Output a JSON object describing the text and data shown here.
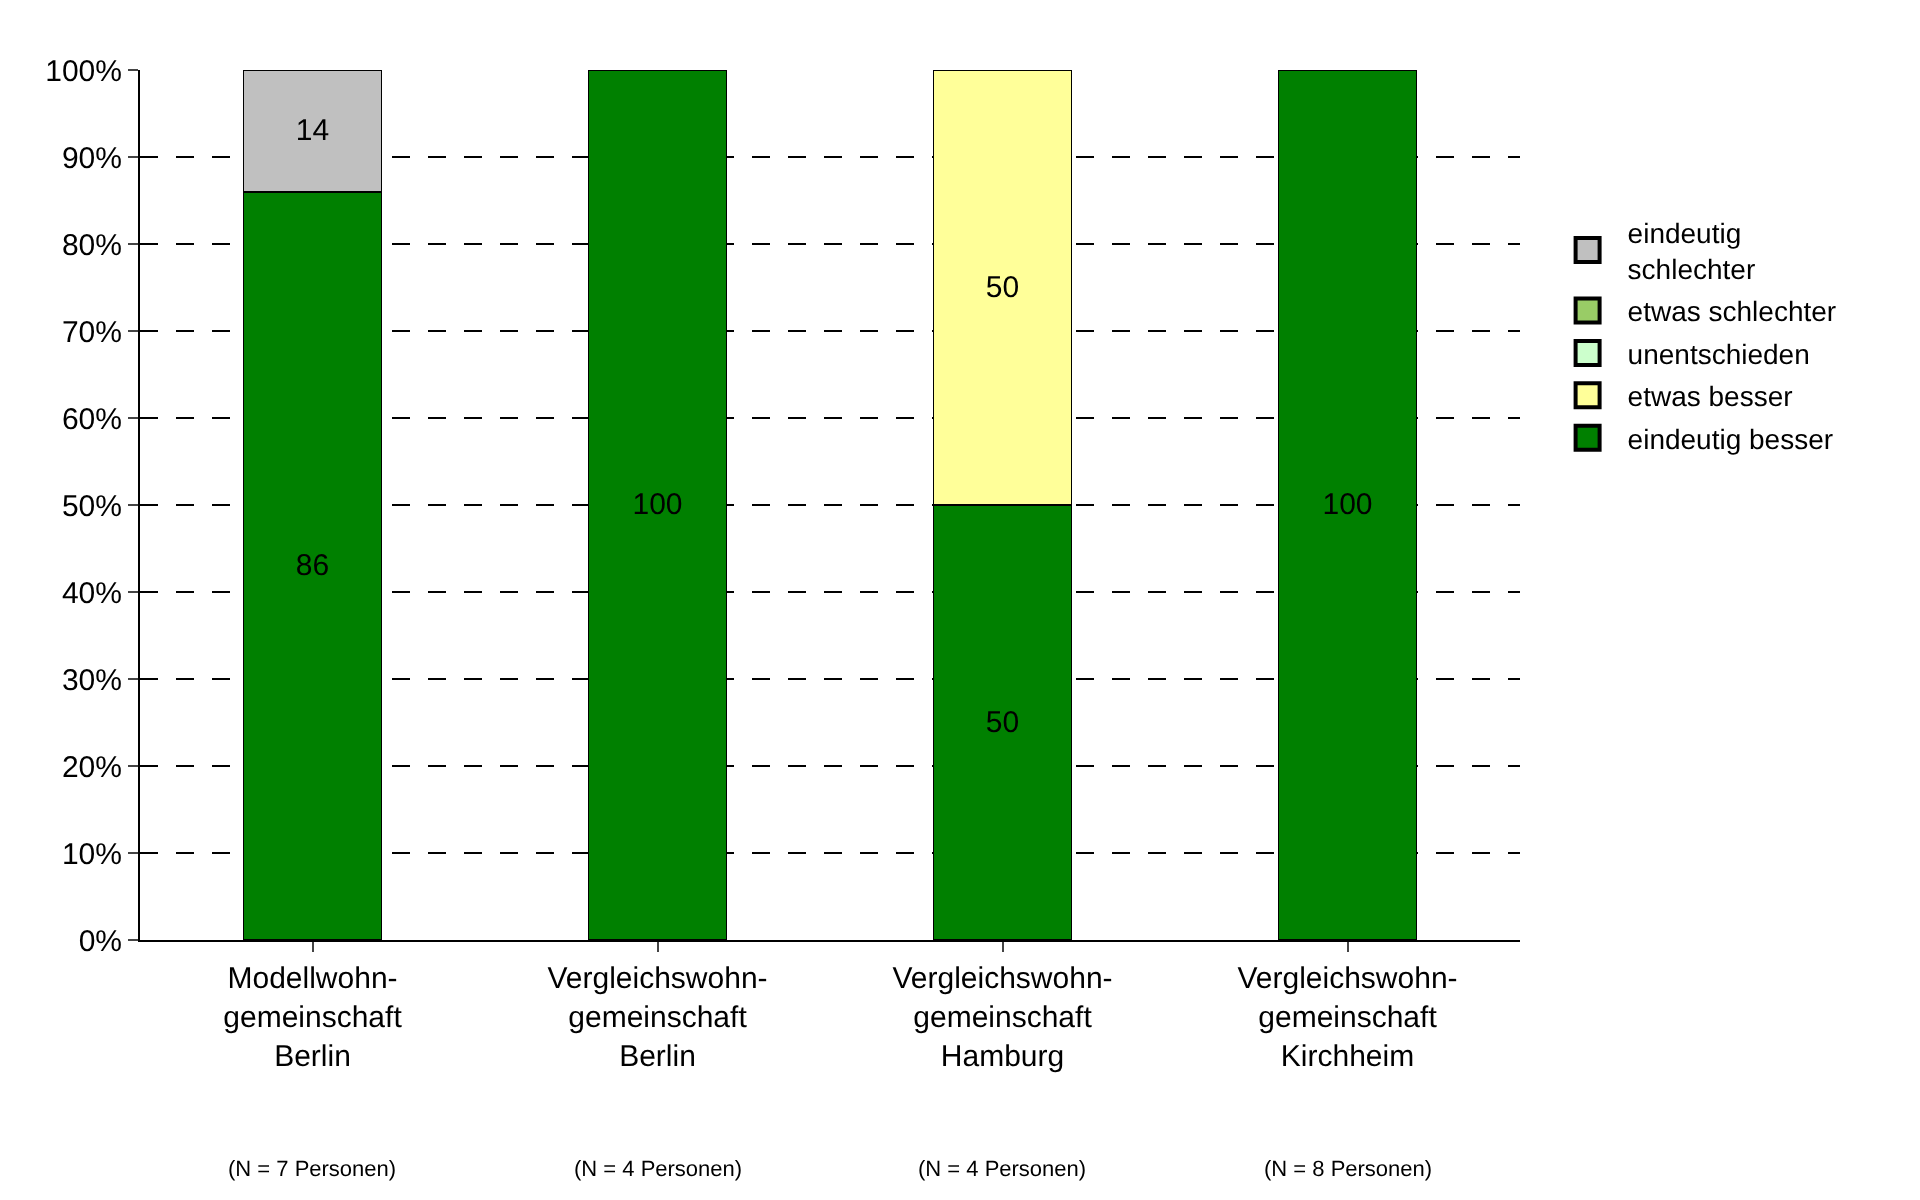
{
  "chart_data": {
    "type": "bar",
    "stacked": true,
    "categories": [
      "Modellwohn-\ngemeinschaft\nBerlin",
      "Vergleichswohn-\ngemeinschaft\nBerlin",
      "Vergleichswohn-\ngemeinschaft\nHamburg",
      "Vergleichswohn-\ngemeinschaft\nKirchheim"
    ],
    "series": [
      {
        "name": "eindeutig besser",
        "color": "#008000",
        "values": [
          86,
          100,
          50,
          100
        ],
        "value_labels": [
          "86",
          "100",
          "50",
          "100"
        ]
      },
      {
        "name": "etwas besser",
        "color": "#ffff99",
        "values": [
          0,
          0,
          50,
          0
        ],
        "value_labels": [
          null,
          null,
          "50",
          null
        ]
      },
      {
        "name": "unentschieden",
        "color": "#ccffcc",
        "values": [
          0,
          0,
          0,
          0
        ],
        "value_labels": [
          null,
          null,
          null,
          null
        ]
      },
      {
        "name": "etwas schlechter",
        "color": "#99cc66",
        "values": [
          0,
          0,
          0,
          0
        ],
        "value_labels": [
          null,
          null,
          null,
          null
        ]
      },
      {
        "name": "eindeutig\nschlechter",
        "color": "#c0c0c0",
        "values": [
          14,
          0,
          0,
          0
        ],
        "value_labels": [
          "14",
          null,
          null,
          null
        ]
      }
    ],
    "ylim": [
      0,
      100
    ],
    "yticks": [
      {
        "value": 0,
        "label": "0%"
      },
      {
        "value": 10,
        "label": "10%"
      },
      {
        "value": 20,
        "label": "20%"
      },
      {
        "value": 30,
        "label": "30%"
      },
      {
        "value": 40,
        "label": "40%"
      },
      {
        "value": 50,
        "label": "50%"
      },
      {
        "value": 60,
        "label": "60%"
      },
      {
        "value": 70,
        "label": "70%"
      },
      {
        "value": 80,
        "label": "80%"
      },
      {
        "value": 90,
        "label": "90%"
      },
      {
        "value": 100,
        "label": "100%"
      }
    ],
    "grid": "y",
    "legend": "right",
    "annotations": [
      "(N = 7 Personen)",
      "(N = 4 Personen)",
      "(N = 4 Personen)",
      "(N = 8 Personen)"
    ]
  }
}
